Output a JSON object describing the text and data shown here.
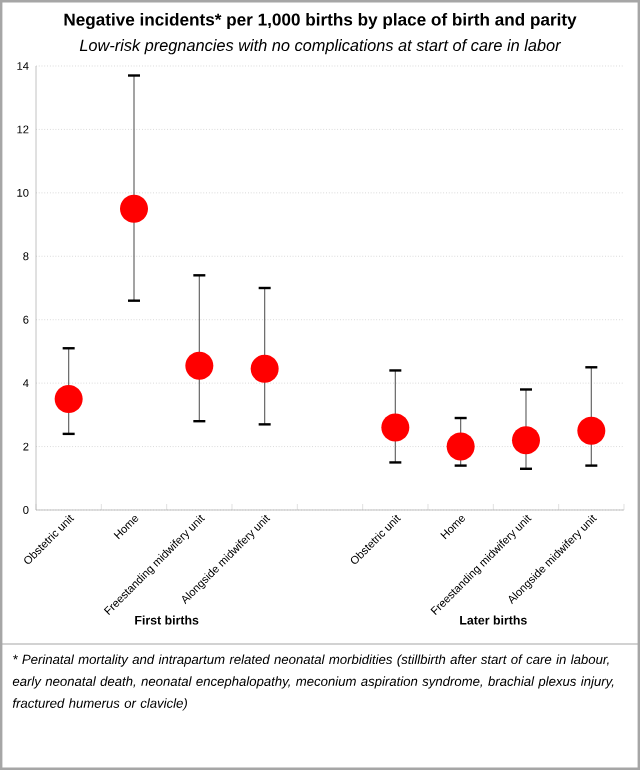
{
  "chart_data": {
    "type": "scatter",
    "title": "Negative incidents* per 1,000 births by place of birth and parity",
    "subtitle": "Low-risk pregnancies with no complications at start of care in labor",
    "categories": [
      "Obstetric unit",
      "Home",
      "Freestanding midwifery unit",
      "Alongside midwifery unit",
      null,
      "Obstetric unit",
      "Home",
      "Freestanding midwifery unit",
      "Alongside midwifery unit"
    ],
    "values": [
      3.5,
      9.5,
      4.55,
      4.45,
      null,
      2.6,
      2.0,
      2.2,
      2.5
    ],
    "errors": [
      [
        2.4,
        5.1
      ],
      [
        6.6,
        13.7
      ],
      [
        2.8,
        7.4
      ],
      [
        2.7,
        7.0
      ],
      null,
      [
        1.5,
        4.4
      ],
      [
        1.4,
        2.9
      ],
      [
        1.3,
        3.8
      ],
      [
        1.4,
        4.5
      ]
    ],
    "color": "#ff0000",
    "marker": "circle",
    "ylim": [
      0,
      14
    ],
    "yticks": [
      0,
      2,
      4,
      6,
      8,
      10,
      12,
      14
    ],
    "grid": "y",
    "annotations": [
      "First births",
      "Later births",
      "* Perinatal mortality and intrapartum related neonatal morbidities (stillbirth after start of care in labour, early neonatal death, neonatal encephalopathy, meconium aspiration syndrome, brachial plexus injury, fractured humerus or clavicle)"
    ]
  }
}
